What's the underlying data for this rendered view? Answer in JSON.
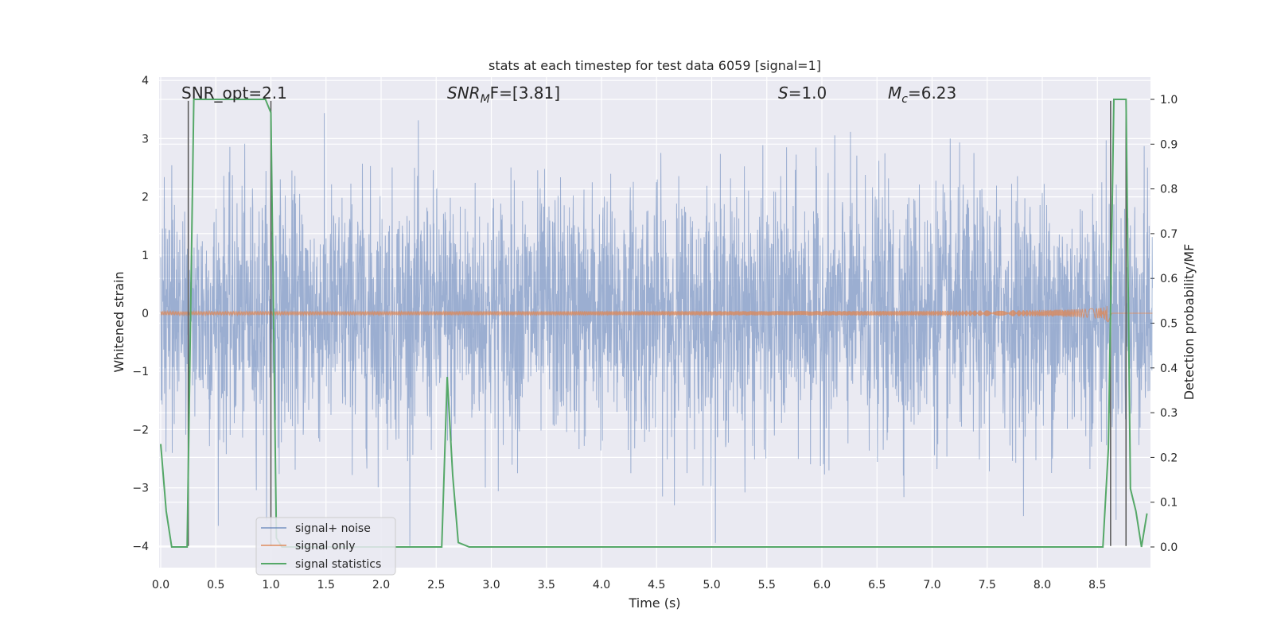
{
  "chart_data": {
    "type": "line",
    "title": "stats at each timestep for test data 6059 [signal=1]",
    "xlabel": "Time (s)",
    "ylabel": "Whitened strain",
    "y2label": "Detection probability/MF",
    "xlim": [
      0.0,
      9.0
    ],
    "ylim": [
      -4.35,
      4.0
    ],
    "y2lim": [
      -0.05,
      1.04
    ],
    "x_ticks": [
      "0.0",
      "0.5",
      "1.0",
      "1.5",
      "2.0",
      "2.5",
      "3.0",
      "3.5",
      "4.0",
      "4.5",
      "5.0",
      "5.5",
      "6.0",
      "6.5",
      "7.0",
      "7.5",
      "8.0",
      "8.5"
    ],
    "y_ticks": [
      "4",
      "3",
      "2",
      "1",
      "0",
      "−1",
      "−2",
      "−3",
      "−4"
    ],
    "y2_ticks": [
      "1.0",
      "0.9",
      "0.8",
      "0.7",
      "0.6",
      "0.5",
      "0.4",
      "0.3",
      "0.2",
      "0.1",
      "0.0"
    ],
    "annotations": {
      "snr_opt": "SNR_opt=2.1",
      "snr_mf_base": "SNR",
      "snr_mf_sub": "M",
      "snr_mf_rest": "F=[3.81]",
      "s_label": "S",
      "s_rest": "=1.0",
      "mc_base": "M",
      "mc_sub": "c",
      "mc_rest": "=6.23"
    },
    "legend": {
      "position": "lower-left",
      "entries": [
        "signal+ noise",
        "signal only",
        "signal statistics"
      ]
    },
    "series": [
      {
        "name": "signal+ noise",
        "color": "#4c72b0",
        "kind": "noise",
        "approx_range": [
          -4.0,
          3.8
        ]
      },
      {
        "name": "signal only",
        "color": "#dd8452",
        "kind": "chirp",
        "merger_time": 8.6,
        "peak_amplitude": 0.2
      },
      {
        "name": "signal statistics",
        "color": "#55a868",
        "axis": "y2",
        "x": [
          0.0,
          0.05,
          0.1,
          0.24,
          0.3,
          0.4,
          0.5,
          0.6,
          0.7,
          0.8,
          0.9,
          0.95,
          1.0,
          1.05,
          1.1,
          1.2,
          1.3,
          1.4,
          2.55,
          2.6,
          2.65,
          2.7,
          2.8,
          3.2,
          3.5,
          4.0,
          4.5,
          5.0,
          6.0,
          7.0,
          8.0,
          8.55,
          8.6,
          8.65,
          8.7,
          8.76,
          8.8,
          8.85,
          8.9,
          8.95
        ],
        "values": [
          0.23,
          0.08,
          0.0,
          0.0,
          1.0,
          1.0,
          1.0,
          1.0,
          1.0,
          1.0,
          1.0,
          1.0,
          0.97,
          0.02,
          0.0,
          0.0,
          0.0,
          0.0,
          0.0,
          0.38,
          0.16,
          0.01,
          0.0,
          0.0,
          0.0,
          0.0,
          0.0,
          0.0,
          0.0,
          0.0,
          0.0,
          0.0,
          0.22,
          1.0,
          1.0,
          1.0,
          0.13,
          0.08,
          0.0,
          0.075
        ]
      }
    ],
    "vertical_lines": {
      "color": "#555555",
      "x": [
        0.25,
        1.0,
        8.62,
        8.76
      ],
      "ymin": [
        -4.0,
        -4.0,
        -4.0,
        -4.0
      ],
      "ymax": [
        3.65,
        3.65,
        3.65,
        3.65
      ]
    }
  }
}
